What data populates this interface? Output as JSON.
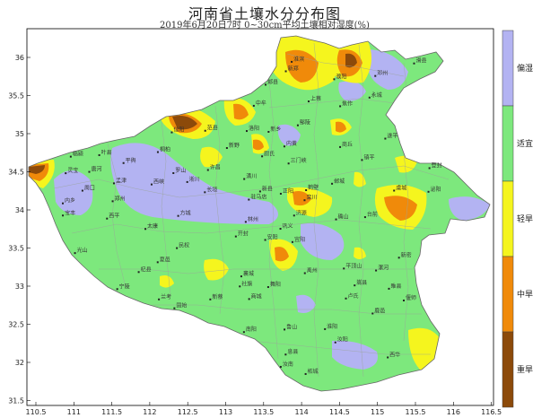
{
  "title": "河南省土壤水分分布图",
  "subtitle": "2019年6月20日7时 0~30cm平均土壤相对湿度(%)",
  "axes": {
    "x_ticks": [
      "110.5",
      "111",
      "111.5",
      "112",
      "112.5",
      "113",
      "113.5",
      "114",
      "114.5",
      "115",
      "115.5",
      "116",
      "116.5"
    ],
    "y_ticks": [
      "36",
      "35.5",
      "35",
      "34.5",
      "34",
      "33.5",
      "33",
      "32.5",
      "32",
      "31.5"
    ]
  },
  "legend": {
    "items": [
      {
        "label": "偏湿",
        "color": "#b3b3f2"
      },
      {
        "label": "适宜",
        "color": "#7de87d"
      },
      {
        "label": "轻旱",
        "color": "#f5f51e"
      },
      {
        "label": "中旱",
        "color": "#f08a0a"
      },
      {
        "label": "重旱",
        "color": "#8c4a0a"
      }
    ]
  },
  "cities": [
    "安阳",
    "林州",
    "鹤壁",
    "濮阳",
    "新乡",
    "焦作",
    "济源",
    "郑州",
    "开封",
    "商丘",
    "洛阳",
    "三门峡",
    "许昌",
    "漯河",
    "周口",
    "平顶山",
    "南阳",
    "驻马店",
    "信阳",
    "永城",
    "固始",
    "淮滨",
    "西峡",
    "卢氏",
    "灵宝",
    "栾川",
    "嵩县",
    "汝阳",
    "鲁山",
    "方城",
    "唐河",
    "桐柏",
    "新县",
    "商城",
    "罗山",
    "光山",
    "潢川",
    "息县",
    "正阳",
    "确山",
    "泌阳",
    "舞阳",
    "西华",
    "淮阳",
    "郸城",
    "鹿邑",
    "太康",
    "杞县",
    "兰考",
    "长垣",
    "滑县",
    "内黄",
    "范县",
    "台前",
    "夏邑",
    "虞城",
    "柘城",
    "睢县",
    "民权",
    "宁陵",
    "宜阳",
    "孟津",
    "偃师",
    "巩义",
    "登封",
    "新密",
    "新郑",
    "中牟",
    "尉氏",
    "鄢陵",
    "禹州",
    "郏县",
    "宝丰",
    "叶县",
    "襄城",
    "临颍",
    "上蔡",
    "汝南",
    "平舆",
    "新蔡",
    "遂平",
    "西平",
    "邓州",
    "新野",
    "内乡",
    "镇平",
    "社旗",
    "淅川"
  ]
}
